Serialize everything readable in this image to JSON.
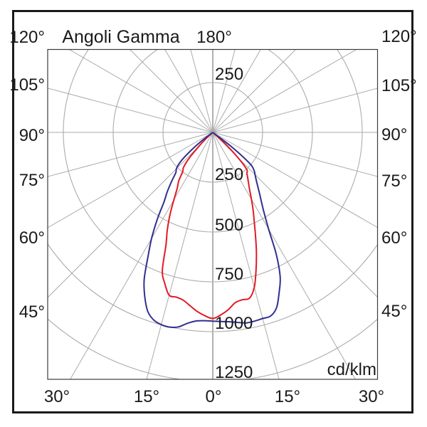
{
  "labels": {
    "title": "Angoli Gamma",
    "angle180": "180°",
    "unit": "cd/klm",
    "left": [
      "120°",
      "105°",
      "90°",
      "75°",
      "60°",
      "45°"
    ],
    "right": [
      "120°",
      "105°",
      "90°",
      "75°",
      "60°",
      "45°"
    ],
    "bottom": [
      "30°",
      "15°",
      "0°",
      "15°",
      "30°"
    ],
    "radial": [
      "250",
      "250",
      "500",
      "750",
      "1000",
      "1250"
    ]
  },
  "colors": {
    "red_curve": "#e01b24",
    "blue_curve": "#312f90",
    "grid": "#ababab",
    "axis": "#b5b5b5",
    "frame": "#3c3c3c",
    "border": "#1a1a1a",
    "text": "#1a1a1a"
  },
  "chart_data": {
    "type": "line",
    "coordinate_system": "polar-photometric",
    "title": "Angoli Gamma 180°",
    "radial_unit": "cd/klm",
    "gamma_zero": "nadir (bottom of diagram)",
    "angle_grid_step_deg": 15,
    "angle_labels_deg": [
      45,
      60,
      75,
      90,
      105,
      120,
      180
    ],
    "bottom_angle_ticks_deg": [
      -30,
      -15,
      0,
      15,
      30
    ],
    "radial_ticks": [
      250,
      500,
      750,
      1000,
      1250
    ],
    "radial_max": 1250,
    "series": [
      {
        "name": "red-curve",
        "color_key": "red_curve",
        "points_gamma_intensity": [
          [
            -50,
            0
          ],
          [
            -47.5,
            40
          ],
          [
            -45,
            95
          ],
          [
            -42.5,
            175
          ],
          [
            -40,
            228
          ],
          [
            -37.5,
            248
          ],
          [
            -35,
            298
          ],
          [
            -32.5,
            332
          ],
          [
            -30,
            390
          ],
          [
            -27.5,
            465
          ],
          [
            -25,
            540
          ],
          [
            -22.5,
            615
          ],
          [
            -20,
            740
          ],
          [
            -17.5,
            798
          ],
          [
            -15,
            846
          ],
          [
            -12.5,
            847
          ],
          [
            -10,
            855
          ],
          [
            -7.5,
            877
          ],
          [
            -5,
            902
          ],
          [
            -2.5,
            921
          ],
          [
            0,
            934
          ],
          [
            2.5,
            917
          ],
          [
            5,
            893
          ],
          [
            7.5,
            862
          ],
          [
            10,
            853
          ],
          [
            12.5,
            852
          ],
          [
            15,
            805
          ],
          [
            17.5,
            722
          ],
          [
            20,
            640
          ],
          [
            22.5,
            560
          ],
          [
            25,
            492
          ],
          [
            27.5,
            438
          ],
          [
            30,
            388
          ],
          [
            32.5,
            345
          ],
          [
            35,
            313
          ],
          [
            37.5,
            288
          ],
          [
            40,
            266
          ],
          [
            42.5,
            252
          ],
          [
            45,
            175
          ],
          [
            47.5,
            85
          ],
          [
            50,
            0
          ]
        ]
      },
      {
        "name": "blue-curve",
        "color_key": "blue_curve",
        "points_gamma_intensity": [
          [
            -55,
            0
          ],
          [
            -52.5,
            70
          ],
          [
            -50,
            155
          ],
          [
            -47.5,
            225
          ],
          [
            -45,
            258
          ],
          [
            -42.5,
            275
          ],
          [
            -40,
            322
          ],
          [
            -37.5,
            375
          ],
          [
            -35,
            428
          ],
          [
            -32.5,
            520
          ],
          [
            -30,
            614
          ],
          [
            -27.5,
            705
          ],
          [
            -25,
            815
          ],
          [
            -22.5,
            892
          ],
          [
            -20,
            955
          ],
          [
            -17.5,
            987
          ],
          [
            -15,
            999
          ],
          [
            -12.5,
            1001
          ],
          [
            -10,
            991
          ],
          [
            -7.5,
            966
          ],
          [
            -5,
            950
          ],
          [
            -2.5,
            946
          ],
          [
            0,
            947
          ],
          [
            2.5,
            950
          ],
          [
            5,
            954
          ],
          [
            7.5,
            962
          ],
          [
            10,
            971
          ],
          [
            12.5,
            970
          ],
          [
            15,
            967
          ],
          [
            17.5,
            966
          ],
          [
            20,
            936
          ],
          [
            22.5,
            870
          ],
          [
            25,
            800
          ],
          [
            27.5,
            690
          ],
          [
            30,
            560
          ],
          [
            32.5,
            480
          ],
          [
            35,
            425
          ],
          [
            37.5,
            385
          ],
          [
            40,
            350
          ],
          [
            42.5,
            322
          ],
          [
            45,
            300
          ],
          [
            47.5,
            280
          ],
          [
            50,
            240
          ],
          [
            52.5,
            120
          ],
          [
            55,
            0
          ]
        ]
      }
    ]
  }
}
